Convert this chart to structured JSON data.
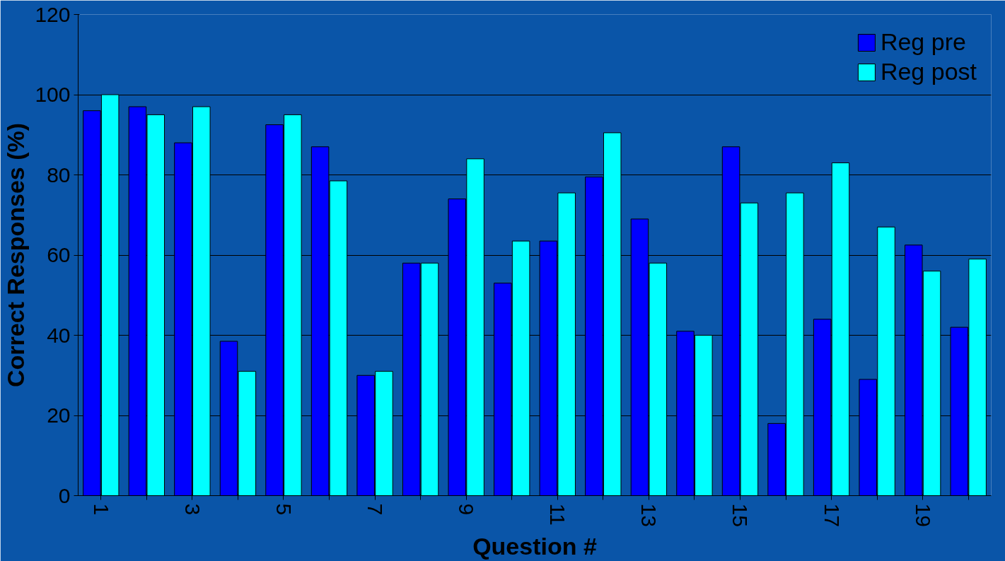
{
  "chart_data": {
    "type": "bar",
    "xlabel": "Question #",
    "ylabel": "Correct Responses (%)",
    "categories": [
      "1",
      null,
      "3",
      null,
      "5",
      null,
      "7",
      null,
      "9",
      null,
      "11",
      null,
      "13",
      null,
      "15",
      null,
      "17",
      null,
      "19",
      null
    ],
    "series": [
      {
        "name": "Reg pre",
        "color": "#0000ff",
        "values": [
          96,
          97,
          88,
          38.5,
          92.5,
          87,
          30,
          58,
          74,
          53,
          63.5,
          79.5,
          69,
          41,
          87,
          18,
          44,
          29,
          62.5,
          42
        ]
      },
      {
        "name": "Reg post",
        "color": "#00ffff",
        "values": [
          100,
          95,
          97,
          31,
          95,
          78.5,
          31,
          58,
          84,
          63.5,
          75.5,
          90.5,
          58,
          40,
          73,
          75.5,
          83,
          67,
          56,
          59
        ]
      }
    ],
    "ylim": [
      0,
      120
    ],
    "yticks": [
      0,
      20,
      40,
      60,
      80,
      100,
      120
    ],
    "grid": "y",
    "legend": "top right"
  }
}
